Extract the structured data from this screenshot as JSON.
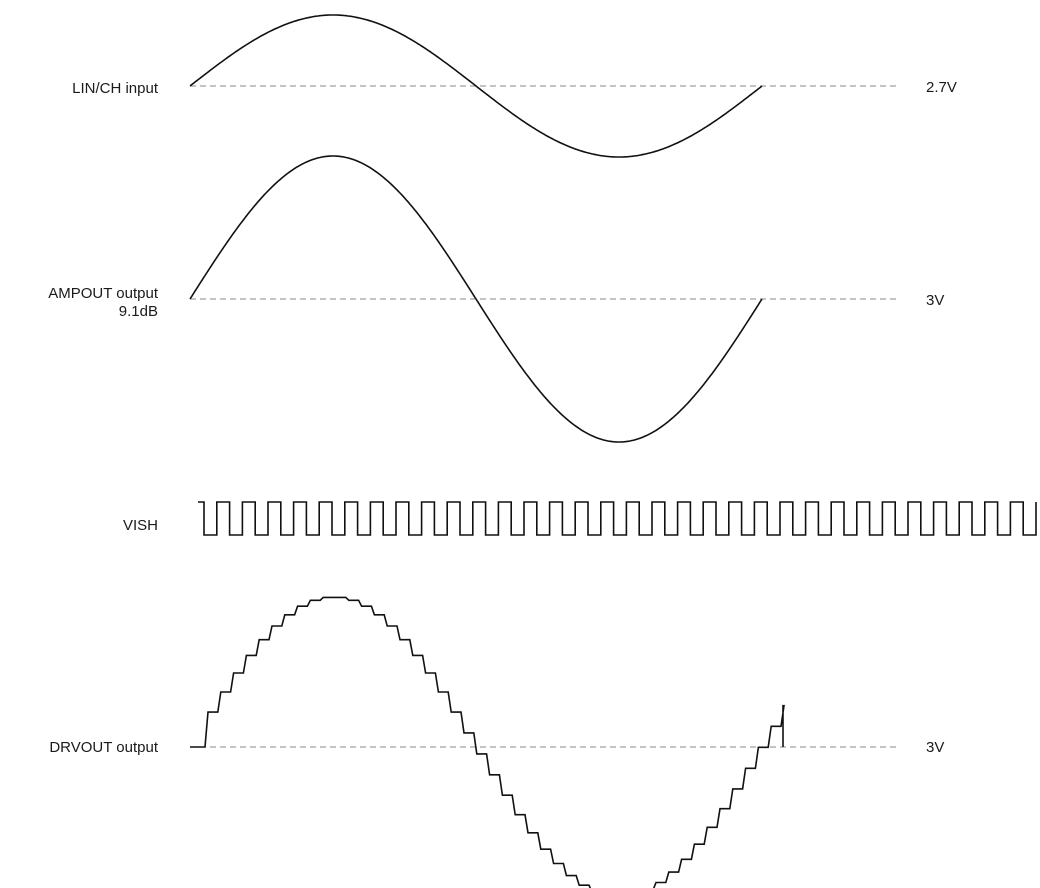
{
  "signals": [
    {
      "name": "LIN/CH input",
      "sublabel": "",
      "baseline_label": "2.7V"
    },
    {
      "name": "AMPOUT output",
      "sublabel": "9.1dB",
      "baseline_label": "3V"
    },
    {
      "name": "VISH",
      "sublabel": "",
      "baseline_label": ""
    },
    {
      "name": "DRVOUT output",
      "sublabel": "",
      "baseline_label": "3V"
    }
  ],
  "colors": {
    "trace": "#111111",
    "baseline": "#8a8a8a",
    "text": "#1a1a1a"
  }
}
